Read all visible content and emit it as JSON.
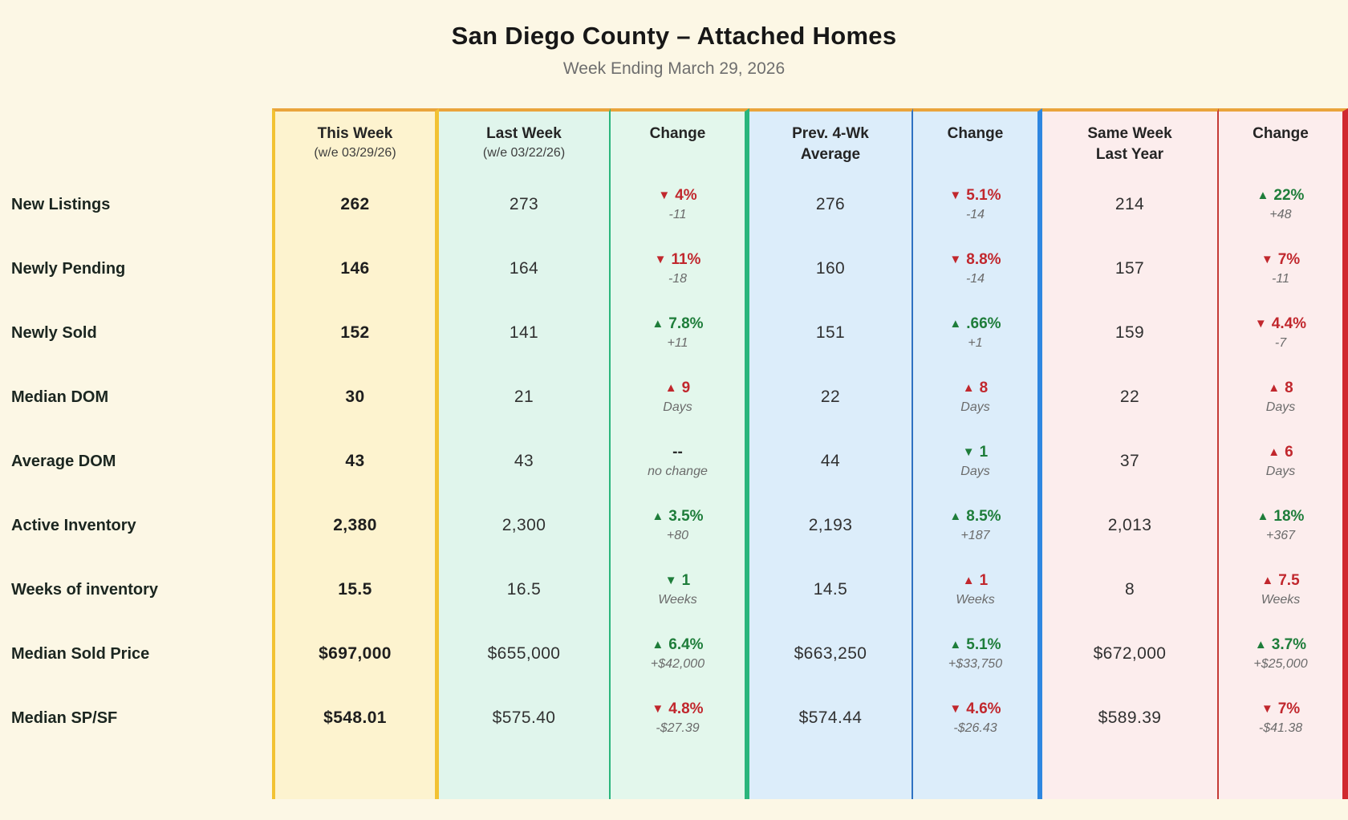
{
  "page": {
    "title": "San Diego County – Attached Homes",
    "subtitle": "Week Ending March 29, 2026"
  },
  "colors": {
    "page_background": "#fcf7e5",
    "this_week_bg": "#fdf3cf",
    "this_week_border": "#f2c233",
    "last_week_bg": "#e0f5ec",
    "week_change_border": "#2ab57c",
    "four_week_bg": "#dcedfa",
    "four_week_border": "#2e86e0",
    "last_year_bg": "#fceded",
    "last_year_border": "#d0282f",
    "table_top_border": "#eaa43c",
    "positive_green": "#1e7d3a",
    "negative_red": "#c1272d",
    "detail_gray": "#6b6b6b"
  },
  "chart_data": {
    "type": "table",
    "title": "San Diego County – Attached Homes",
    "subtitle": "Week Ending March 29, 2026",
    "header": {
      "cols": [
        {
          "label": "This Week",
          "sublabel": "(w/e 03/29/26)"
        },
        {
          "label": "Last Week",
          "sublabel": "(w/e 03/22/26)"
        },
        {
          "label": "Change",
          "sublabel": ""
        },
        {
          "label": "Prev. 4-Wk\nAverage",
          "sublabel": ""
        },
        {
          "label": "Change",
          "sublabel": ""
        },
        {
          "label": "Same Week\nLast Year",
          "sublabel": ""
        },
        {
          "label": "Change",
          "sublabel": ""
        }
      ]
    },
    "rows": [
      {
        "label": "New Listings",
        "this_week": "262",
        "last_week": "273",
        "change_vs_last_week": {
          "arrow": "▼",
          "value": "4%",
          "detail": "-11",
          "direction": "down",
          "sentiment": "negative"
        },
        "prev_4wk_avg": "276",
        "change_vs_4wk_avg": {
          "arrow": "▼",
          "value": "5.1%",
          "detail": "-14",
          "direction": "down",
          "sentiment": "negative"
        },
        "same_week_last_year": "214",
        "change_vs_last_year": {
          "arrow": "▲",
          "value": "22%",
          "detail": "+48",
          "direction": "up",
          "sentiment": "positive"
        }
      },
      {
        "label": "Newly Pending",
        "this_week": "146",
        "last_week": "164",
        "change_vs_last_week": {
          "arrow": "▼",
          "value": "11%",
          "detail": "-18",
          "direction": "down",
          "sentiment": "negative"
        },
        "prev_4wk_avg": "160",
        "change_vs_4wk_avg": {
          "arrow": "▼",
          "value": "8.8%",
          "detail": "-14",
          "direction": "down",
          "sentiment": "negative"
        },
        "same_week_last_year": "157",
        "change_vs_last_year": {
          "arrow": "▼",
          "value": "7%",
          "detail": "-11",
          "direction": "down",
          "sentiment": "negative"
        }
      },
      {
        "label": "Newly Sold",
        "this_week": "152",
        "last_week": "141",
        "change_vs_last_week": {
          "arrow": "▲",
          "value": "7.8%",
          "detail": "+11",
          "direction": "up",
          "sentiment": "positive"
        },
        "prev_4wk_avg": "151",
        "change_vs_4wk_avg": {
          "arrow": "▲",
          "value": ".66%",
          "detail": "+1",
          "direction": "up",
          "sentiment": "positive"
        },
        "same_week_last_year": "159",
        "change_vs_last_year": {
          "arrow": "▼",
          "value": "4.4%",
          "detail": "-7",
          "direction": "down",
          "sentiment": "negative"
        }
      },
      {
        "label": "Median DOM",
        "this_week": "30",
        "last_week": "21",
        "change_vs_last_week": {
          "arrow": "▲",
          "value": "9",
          "detail": "Days",
          "direction": "up",
          "sentiment": "negative"
        },
        "prev_4wk_avg": "22",
        "change_vs_4wk_avg": {
          "arrow": "▲",
          "value": "8",
          "detail": "Days",
          "direction": "up",
          "sentiment": "negative"
        },
        "same_week_last_year": "22",
        "change_vs_last_year": {
          "arrow": "▲",
          "value": "8",
          "detail": "Days",
          "direction": "up",
          "sentiment": "negative"
        }
      },
      {
        "label": "Average DOM",
        "this_week": "43",
        "last_week": "43",
        "change_vs_last_week": {
          "arrow": "",
          "value": "--",
          "detail": "no change",
          "direction": "none",
          "sentiment": "neutral"
        },
        "prev_4wk_avg": "44",
        "change_vs_4wk_avg": {
          "arrow": "▼",
          "value": "1",
          "detail": "Days",
          "direction": "down",
          "sentiment": "positive"
        },
        "same_week_last_year": "37",
        "change_vs_last_year": {
          "arrow": "▲",
          "value": "6",
          "detail": "Days",
          "direction": "up",
          "sentiment": "negative"
        }
      },
      {
        "label": "Active Inventory",
        "this_week": "2,380",
        "last_week": "2,300",
        "change_vs_last_week": {
          "arrow": "▲",
          "value": "3.5%",
          "detail": "+80",
          "direction": "up",
          "sentiment": "positive"
        },
        "prev_4wk_avg": "2,193",
        "change_vs_4wk_avg": {
          "arrow": "▲",
          "value": "8.5%",
          "detail": "+187",
          "direction": "up",
          "sentiment": "positive"
        },
        "same_week_last_year": "2,013",
        "change_vs_last_year": {
          "arrow": "▲",
          "value": "18%",
          "detail": "+367",
          "direction": "up",
          "sentiment": "positive"
        }
      },
      {
        "label": "Weeks of inventory",
        "this_week": "15.5",
        "last_week": "16.5",
        "change_vs_last_week": {
          "arrow": "▼",
          "value": "1",
          "detail": "Weeks",
          "direction": "down",
          "sentiment": "positive"
        },
        "prev_4wk_avg": "14.5",
        "change_vs_4wk_avg": {
          "arrow": "▲",
          "value": "1",
          "detail": "Weeks",
          "direction": "up",
          "sentiment": "negative"
        },
        "same_week_last_year": "8",
        "change_vs_last_year": {
          "arrow": "▲",
          "value": "7.5",
          "detail": "Weeks",
          "direction": "up",
          "sentiment": "negative"
        }
      },
      {
        "label": "Median Sold Price",
        "this_week": "$697,000",
        "last_week": "$655,000",
        "change_vs_last_week": {
          "arrow": "▲",
          "value": "6.4%",
          "detail": "+$42,000",
          "direction": "up",
          "sentiment": "positive"
        },
        "prev_4wk_avg": "$663,250",
        "change_vs_4wk_avg": {
          "arrow": "▲",
          "value": "5.1%",
          "detail": "+$33,750",
          "direction": "up",
          "sentiment": "positive"
        },
        "same_week_last_year": "$672,000",
        "change_vs_last_year": {
          "arrow": "▲",
          "value": "3.7%",
          "detail": "+$25,000",
          "direction": "up",
          "sentiment": "positive"
        }
      },
      {
        "label": "Median SP/SF",
        "this_week": "$548.01",
        "last_week": "$575.40",
        "change_vs_last_week": {
          "arrow": "▼",
          "value": "4.8%",
          "detail": "-$27.39",
          "direction": "down",
          "sentiment": "negative"
        },
        "prev_4wk_avg": "$574.44",
        "change_vs_4wk_avg": {
          "arrow": "▼",
          "value": "4.6%",
          "detail": "-$26.43",
          "direction": "down",
          "sentiment": "negative"
        },
        "same_week_last_year": "$589.39",
        "change_vs_last_year": {
          "arrow": "▼",
          "value": "7%",
          "detail": "-$41.38",
          "direction": "down",
          "sentiment": "negative"
        }
      }
    ]
  }
}
